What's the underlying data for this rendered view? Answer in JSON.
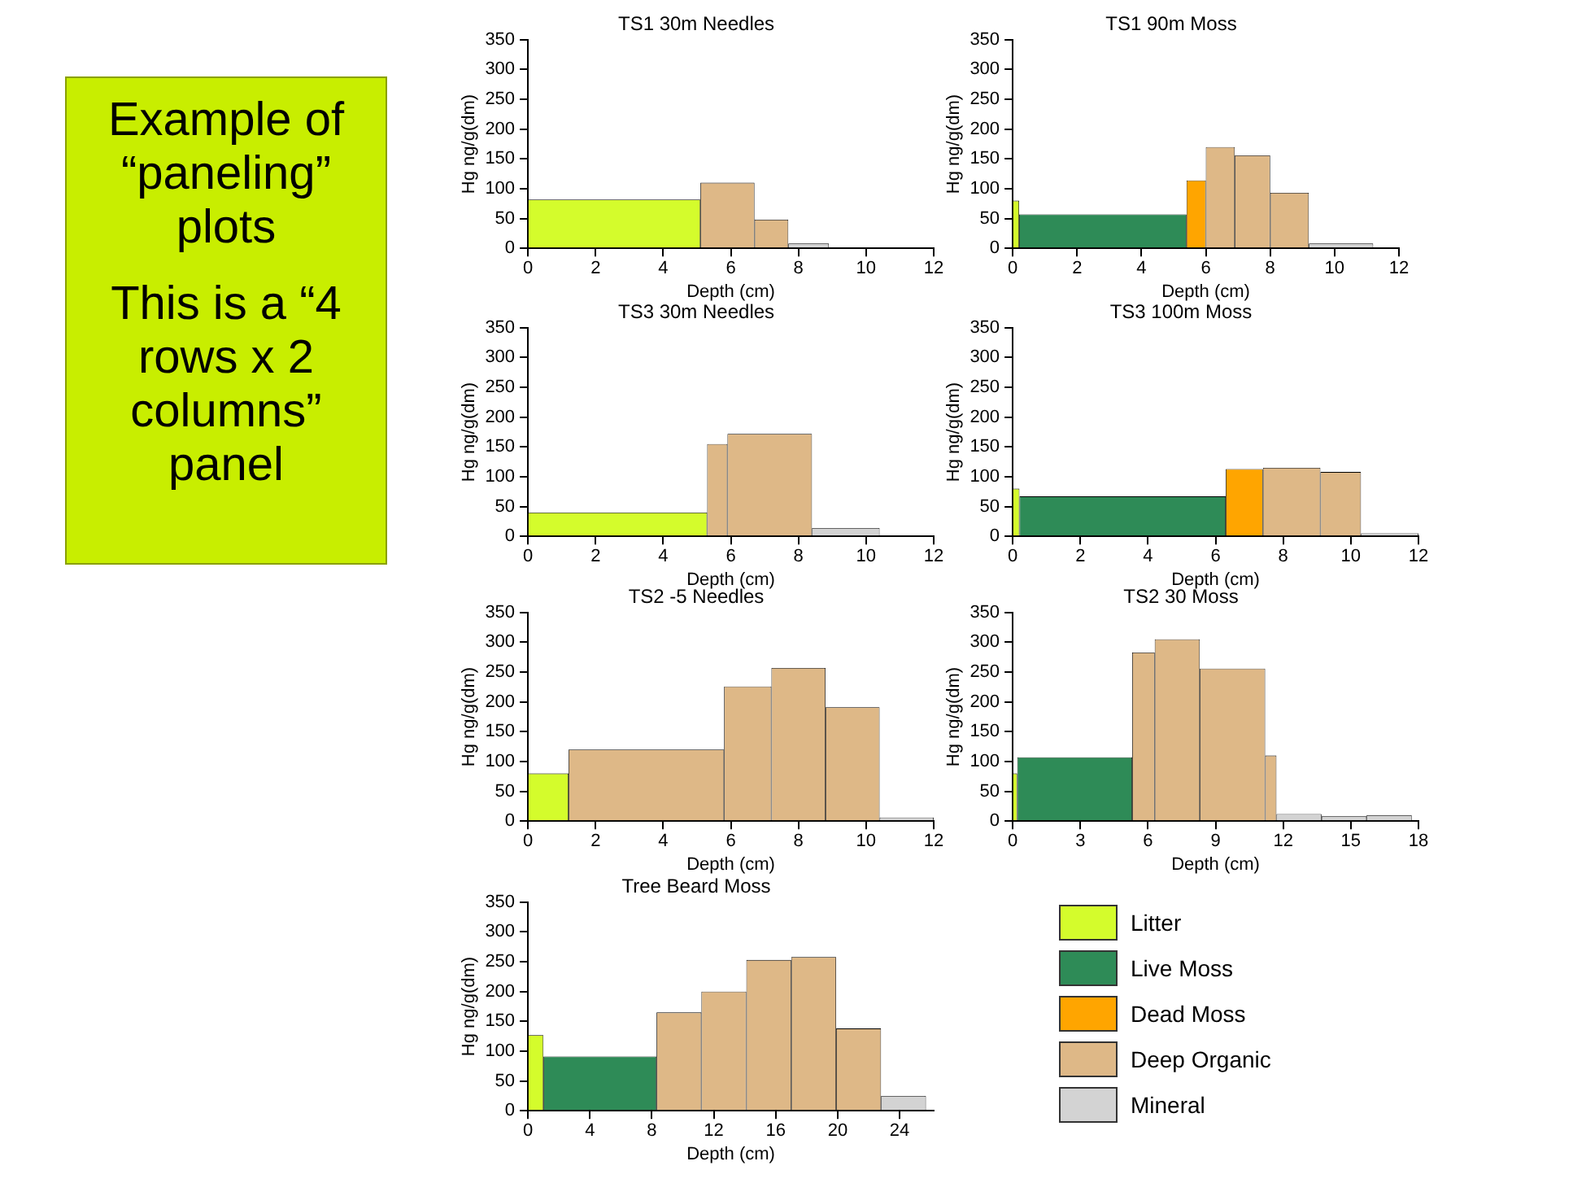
{
  "chart_data": [
    {
      "type": "other",
      "title": "Example of “paneling” plots",
      "annotations": [
        "This is a “4 rows x 2 columns” panel"
      ]
    },
    {
      "type": "histogram",
      "title": "TS1 30m Needles",
      "xlabel": "Depth (cm)",
      "ylabel": "Hg ng/g(dm)",
      "bins": [
        0,
        5.1,
        6.7,
        7.7,
        8.9
      ],
      "xlim": [
        0,
        12
      ],
      "xticks": [
        0,
        2,
        4,
        6,
        8,
        10,
        12
      ],
      "ylim": [
        0,
        350
      ],
      "yticks": [
        0,
        50,
        100,
        150,
        200,
        250,
        300,
        350
      ],
      "grid": false,
      "series": [
        {
          "color": "#d4fc2c",
          "values": [
            82,
            null,
            null,
            null
          ]
        },
        {
          "color": "#deb887",
          "values": [
            null,
            110,
            48,
            null
          ]
        },
        {
          "color": "#d3d3d3",
          "values": [
            null,
            null,
            null,
            8
          ]
        }
      ]
    },
    {
      "type": "histogram",
      "title": "TS1 90m Moss",
      "xlabel": "Depth (cm)",
      "ylabel": "Hg ng/g(dm)",
      "bins": [
        0,
        0.2,
        5.4,
        6,
        6.9,
        8,
        9.2,
        11.2
      ],
      "xlim": [
        0,
        12
      ],
      "xticks": [
        0,
        2,
        4,
        6,
        8,
        10,
        12
      ],
      "ylim": [
        0,
        350
      ],
      "yticks": [
        0,
        50,
        100,
        150,
        200,
        250,
        300,
        350
      ],
      "grid": false,
      "legend": "bottom",
      "series": [
        {
          "name": "Litter",
          "color": "#d4fc2c",
          "values": [
            80,
            null,
            null,
            null,
            null,
            null,
            null
          ]
        },
        {
          "name": "Live Moss",
          "color": "#2e8b57",
          "values": [
            null,
            57,
            null,
            null,
            null,
            null,
            null
          ]
        },
        {
          "name": "Dead Moss",
          "color": "#ffa500",
          "values": [
            null,
            null,
            114,
            null,
            null,
            null,
            null
          ]
        },
        {
          "name": "Deep Organic",
          "color": "#deb887",
          "values": [
            null,
            null,
            null,
            170,
            156,
            93,
            null
          ]
        },
        {
          "name": "Mineral",
          "color": "#d3d3d3",
          "values": [
            null,
            null,
            null,
            null,
            null,
            null,
            8
          ]
        }
      ]
    },
    {
      "type": "histogram",
      "title": "TS3 30m Needles",
      "xlabel": "Depth (cm)",
      "ylabel": "Hg ng/g(dm)",
      "bins": [
        0,
        5.3,
        5.9,
        8.4,
        10.4
      ],
      "xlim": [
        0,
        12
      ],
      "xticks": [
        0,
        2,
        4,
        6,
        8,
        10,
        12
      ],
      "ylim": [
        0,
        350
      ],
      "yticks": [
        0,
        50,
        100,
        150,
        200,
        250,
        300,
        350
      ],
      "grid": false,
      "series": [
        {
          "color": "#d4fc2c",
          "values": [
            40,
            null,
            null,
            null
          ]
        },
        {
          "color": "#deb887",
          "values": [
            null,
            155,
            172,
            null
          ]
        },
        {
          "color": "#d3d3d3",
          "values": [
            null,
            null,
            null,
            14
          ]
        }
      ]
    },
    {
      "type": "histogram",
      "title": "TS3 100m Moss",
      "xlabel": "Depth (cm)",
      "ylabel": "Hg ng/g(dm)",
      "bins": [
        0,
        0.2,
        6.3,
        7.4,
        9.1,
        10.3,
        12
      ],
      "xlim": [
        0,
        12
      ],
      "xticks": [
        0,
        2,
        4,
        6,
        8,
        10,
        12
      ],
      "ylim": [
        0,
        350
      ],
      "yticks": [
        0,
        50,
        100,
        150,
        200,
        250,
        300,
        350
      ],
      "grid": false,
      "series": [
        {
          "color": "#d4fc2c",
          "values": [
            80,
            null,
            null,
            null,
            null,
            null
          ]
        },
        {
          "color": "#2e8b57",
          "values": [
            null,
            67,
            null,
            null,
            null,
            null
          ]
        },
        {
          "color": "#ffa500",
          "values": [
            null,
            null,
            113,
            null,
            null,
            null
          ]
        },
        {
          "color": "#deb887",
          "values": [
            null,
            null,
            null,
            115,
            108,
            null
          ]
        },
        {
          "color": "#d3d3d3",
          "values": [
            null,
            null,
            null,
            null,
            null,
            5
          ]
        }
      ]
    },
    {
      "type": "histogram",
      "title": "TS2 -5 Needles",
      "xlabel": "Depth (cm)",
      "ylabel": "Hg ng/g(dm)",
      "bins": [
        0,
        1.2,
        5.8,
        7.2,
        8.8,
        10.4,
        12
      ],
      "xlim": [
        0,
        12
      ],
      "xticks": [
        0,
        2,
        4,
        6,
        8,
        10,
        12
      ],
      "ylim": [
        0,
        350
      ],
      "yticks": [
        0,
        50,
        100,
        150,
        200,
        250,
        300,
        350
      ],
      "grid": false,
      "series": [
        {
          "color": "#d4fc2c",
          "values": [
            80,
            null,
            null,
            null,
            null,
            null
          ]
        },
        {
          "color": "#deb887",
          "values": [
            null,
            120,
            226,
            257,
            191,
            null
          ]
        },
        {
          "color": "#d3d3d3",
          "values": [
            null,
            null,
            null,
            null,
            null,
            6
          ]
        }
      ]
    },
    {
      "type": "histogram",
      "title": "TS2 30 Moss",
      "xlabel": "Depth (cm)",
      "ylabel": "Hg ng/g(dm)",
      "bins": [
        0,
        0.2,
        5.3,
        6.3,
        8.3,
        11.2,
        11.7,
        13.7,
        15.7,
        17.7
      ],
      "xlim": [
        0,
        18
      ],
      "xticks": [
        0,
        3,
        6,
        9,
        12,
        15,
        18
      ],
      "ylim": [
        0,
        350
      ],
      "yticks": [
        0,
        50,
        100,
        150,
        200,
        250,
        300,
        350
      ],
      "grid": false,
      "series": [
        {
          "color": "#d4fc2c",
          "values": [
            80,
            null,
            null,
            null,
            null,
            null,
            null,
            null,
            null
          ]
        },
        {
          "color": "#2e8b57",
          "values": [
            null,
            107,
            null,
            null,
            null,
            null,
            null,
            null,
            null
          ]
        },
        {
          "color": "#deb887",
          "values": [
            null,
            null,
            283,
            305,
            256,
            110,
            null,
            null,
            null
          ]
        },
        {
          "color": "#d3d3d3",
          "values": [
            null,
            null,
            null,
            null,
            null,
            null,
            12,
            8,
            10
          ]
        }
      ]
    },
    {
      "type": "histogram",
      "title": "Tree Beard Moss",
      "xlabel": "Depth (cm)",
      "ylabel": "Hg ng/g(dm)",
      "bins": [
        0,
        1,
        8.3,
        11.2,
        14.1,
        17,
        19.9,
        22.8,
        25.7
      ],
      "xlim": [
        0,
        26.2
      ],
      "xticks": [
        0,
        4,
        8,
        12,
        16,
        20,
        24
      ],
      "ylim": [
        0,
        350
      ],
      "yticks": [
        0,
        50,
        100,
        150,
        200,
        250,
        300,
        350
      ],
      "grid": false,
      "series": [
        {
          "color": "#d4fc2c",
          "values": [
            127,
            null,
            null,
            null,
            null,
            null,
            null,
            null
          ]
        },
        {
          "color": "#2e8b57",
          "values": [
            null,
            91,
            null,
            null,
            null,
            null,
            null,
            null
          ]
        },
        {
          "color": "#deb887",
          "values": [
            null,
            null,
            165,
            200,
            253,
            258,
            138,
            null
          ]
        },
        {
          "color": "#d3d3d3",
          "values": [
            null,
            null,
            null,
            null,
            null,
            null,
            null,
            25
          ]
        }
      ]
    }
  ]
}
